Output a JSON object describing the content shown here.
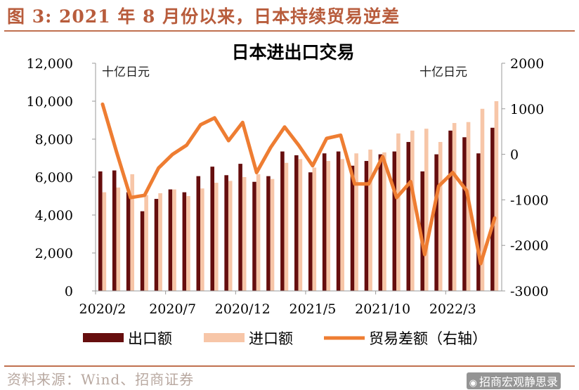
{
  "figure": {
    "heading": "图 3: 2021 年 8 月份以来，日本持续贸易逆差",
    "source": "资料来源：Wind、招商证券",
    "watermark": "招商宏观静思录"
  },
  "colors": {
    "export": "#660e0e",
    "import": "#f7c6a8",
    "balance": "#ee7d32",
    "heading": "#b85c3c",
    "rule": "#c0704f"
  },
  "chart_data": {
    "type": "bar",
    "title": "日本进出口交易",
    "ylabel_left": "十亿日元",
    "ylabel_right": "十亿日元",
    "categories": [
      "2020/2",
      "2020/3",
      "2020/4",
      "2020/5",
      "2020/6",
      "2020/7",
      "2020/8",
      "2020/9",
      "2020/10",
      "2020/11",
      "2020/12",
      "2021/1",
      "2021/2",
      "2021/3",
      "2021/4",
      "2021/5",
      "2021/6",
      "2021/7",
      "2021/8",
      "2021/9",
      "2021/10",
      "2021/11",
      "2021/12",
      "2022/1",
      "2022/2",
      "2022/3",
      "2022/4",
      "2022/5",
      "2022/6"
    ],
    "x_tick_labels": [
      "2020/2",
      "2020/7",
      "2020/12",
      "2021/5",
      "2021/10",
      "2022/3"
    ],
    "ylim_left": [
      0,
      12000
    ],
    "yticks_left": [
      "0",
      "2,000",
      "4,000",
      "6,000",
      "8,000",
      "10,000",
      "12,000"
    ],
    "ylim_right": [
      -3000,
      2000
    ],
    "yticks_right": [
      "-3000",
      "-2000",
      "-1000",
      "0",
      "1000",
      "2000"
    ],
    "series": [
      {
        "name": "出口额",
        "axis": "left",
        "kind": "bar",
        "values": [
          6300,
          6350,
          5200,
          4200,
          4850,
          5350,
          5200,
          6050,
          6550,
          6100,
          6700,
          5750,
          6050,
          7350,
          7150,
          6250,
          7250,
          7350,
          6600,
          6850,
          7200,
          7350,
          7850,
          6300,
          7200,
          8450,
          8100,
          7250,
          8600
        ]
      },
      {
        "name": "进口额",
        "axis": "left",
        "kind": "bar",
        "values": [
          5200,
          5450,
          6150,
          5050,
          5150,
          5350,
          5000,
          5400,
          5700,
          5800,
          6000,
          6150,
          5900,
          6750,
          6950,
          6500,
          6850,
          6950,
          7250,
          7450,
          7300,
          8300,
          8450,
          8550,
          7850,
          8850,
          8900,
          9600,
          10000
        ]
      },
      {
        "name": "贸易差额（右轴）",
        "axis": "right",
        "kind": "line",
        "values": [
          1100,
          50,
          -950,
          -900,
          -300,
          0,
          200,
          650,
          800,
          300,
          700,
          -400,
          150,
          600,
          200,
          -250,
          350,
          420,
          -650,
          -650,
          -50,
          -950,
          -600,
          -2200,
          -700,
          -400,
          -800,
          -2400,
          -1400
        ]
      }
    ],
    "legend_position": "bottom",
    "grid": false
  }
}
